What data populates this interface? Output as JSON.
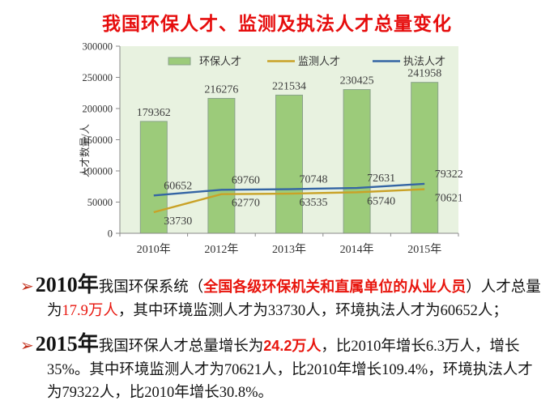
{
  "slide": {
    "title": "我国环保人才、监测及执法人才总量变化",
    "title_color": "#e60d0d",
    "accent_red": "#e8150d",
    "bullet_marker_color": "#c2301c"
  },
  "chart_data": {
    "type": "bar",
    "subtype": "combo-bar-line",
    "title": "我国环保人才、监测及执法人才总量变化",
    "categories": [
      "2010年",
      "2012年",
      "2013年",
      "2014年",
      "2015年"
    ],
    "series": [
      {
        "name": "环保人才",
        "kind": "bar",
        "color": "#9ccb7a",
        "border_color": "#8aa28b",
        "values": [
          179362,
          216276,
          221534,
          230425,
          241958
        ]
      },
      {
        "name": "监测人才",
        "kind": "line",
        "color": "#c9a227",
        "label_side": "below",
        "values": [
          33730,
          62770,
          63535,
          65740,
          70621
        ]
      },
      {
        "name": "执法人才",
        "kind": "line",
        "color": "#3465a4",
        "label_side": "above",
        "values": [
          60652,
          69760,
          70748,
          72631,
          79322
        ]
      }
    ],
    "xlabel": "",
    "ylabel": "人才数量/人",
    "ylim": [
      0,
      300000
    ],
    "yticks": [
      0,
      50000,
      100000,
      150000,
      200000,
      250000,
      300000
    ],
    "grid": false,
    "data_labels": true,
    "plot_background": "#e8f2e0",
    "axis_color": "#8a8a8a",
    "legend_position": "top-inside"
  },
  "bullets": [
    {
      "marker": "➢",
      "lead": "2010年",
      "segments": [
        {
          "text": "我国环保系统（",
          "style": "plain"
        },
        {
          "text": "全国各级环保机关和直属单位的从业人员",
          "style": "red-bold"
        },
        {
          "text": "）人才总量为",
          "style": "plain"
        },
        {
          "text": "17.9万人",
          "style": "red"
        },
        {
          "text": "，其中环境监测人才为33730人，环境执法人才为60652人；",
          "style": "plain"
        }
      ]
    },
    {
      "marker": "➢",
      "lead": "2015年",
      "segments": [
        {
          "text": "我国环保人才总量增长为",
          "style": "plain"
        },
        {
          "text": "24.2万人",
          "style": "red-bold"
        },
        {
          "text": "，比2010年增长6.3万人，增长35%。其中环境监测人才为70621人，比2010年增长109.4%，环境执法人才为79322人，比2010年增长30.8%。",
          "style": "plain"
        }
      ]
    }
  ]
}
